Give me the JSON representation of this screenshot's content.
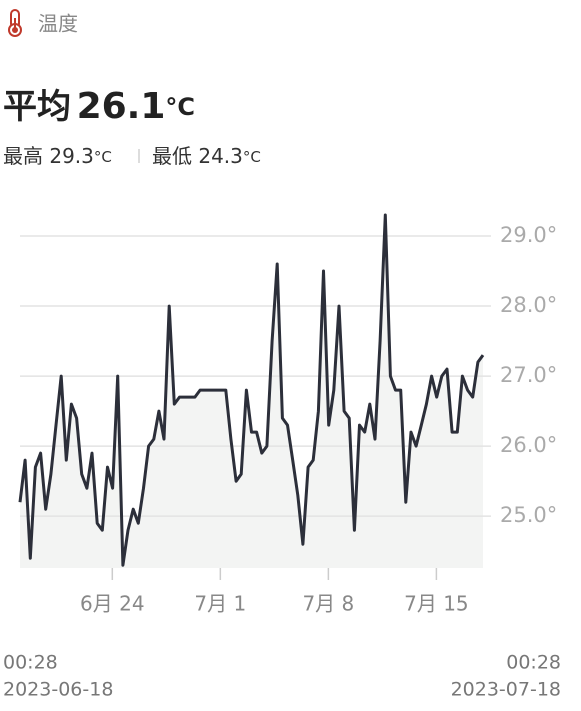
{
  "header": {
    "title": "温度"
  },
  "summary": {
    "avg_label": "平均",
    "avg": 26.1,
    "unit": "°C",
    "max_label": "最高",
    "max": 29.3,
    "min_label": "最低",
    "min": 24.3
  },
  "chart_data": {
    "type": "line",
    "color": "#2c2f3a",
    "fill": "#f3f4f3",
    "grid": true,
    "x": [
      "2023-06-18T00:28",
      "2023-06-18T08:28",
      "2023-06-18T16:28",
      "2023-06-19T00:28",
      "2023-06-19T08:28",
      "2023-06-19T16:28",
      "2023-06-20T00:28",
      "2023-06-20T08:28",
      "2023-06-20T16:28",
      "2023-06-21T00:28",
      "2023-06-21T08:28",
      "2023-06-21T16:28",
      "2023-06-22T00:28",
      "2023-06-22T08:28",
      "2023-06-22T16:28",
      "2023-06-23T00:28",
      "2023-06-23T08:28",
      "2023-06-23T16:28",
      "2023-06-24T00:28",
      "2023-06-24T08:28",
      "2023-06-24T16:28",
      "2023-06-25T00:28",
      "2023-06-25T08:28",
      "2023-06-25T16:28",
      "2023-06-26T00:28",
      "2023-06-26T08:28",
      "2023-06-26T16:28",
      "2023-06-27T00:28",
      "2023-06-27T08:28",
      "2023-06-27T16:28",
      "2023-06-28T00:28",
      "2023-06-28T08:28",
      "2023-06-28T16:28",
      "2023-06-29T00:28",
      "2023-06-29T08:28",
      "2023-06-29T16:28",
      "2023-06-30T00:28",
      "2023-06-30T08:28",
      "2023-06-30T16:28",
      "2023-07-01T00:28",
      "2023-07-01T08:28",
      "2023-07-01T16:28",
      "2023-07-02T00:28",
      "2023-07-02T08:28",
      "2023-07-02T16:28",
      "2023-07-03T00:28",
      "2023-07-03T08:28",
      "2023-07-03T16:28",
      "2023-07-04T00:28",
      "2023-07-04T08:28",
      "2023-07-04T16:28",
      "2023-07-05T00:28",
      "2023-07-05T08:28",
      "2023-07-05T16:28",
      "2023-07-06T00:28",
      "2023-07-06T08:28",
      "2023-07-06T16:28",
      "2023-07-07T00:28",
      "2023-07-07T08:28",
      "2023-07-07T16:28",
      "2023-07-08T00:28",
      "2023-07-08T08:28",
      "2023-07-08T16:28",
      "2023-07-09T00:28",
      "2023-07-09T08:28",
      "2023-07-09T16:28",
      "2023-07-10T00:28",
      "2023-07-10T08:28",
      "2023-07-10T16:28",
      "2023-07-11T00:28",
      "2023-07-11T08:28",
      "2023-07-11T16:28",
      "2023-07-12T00:28",
      "2023-07-12T08:28",
      "2023-07-12T16:28",
      "2023-07-13T00:28",
      "2023-07-13T08:28",
      "2023-07-13T16:28",
      "2023-07-14T00:28",
      "2023-07-14T08:28",
      "2023-07-14T16:28",
      "2023-07-15T00:28",
      "2023-07-15T08:28",
      "2023-07-15T16:28",
      "2023-07-16T00:28",
      "2023-07-16T08:28",
      "2023-07-16T16:28",
      "2023-07-17T00:28",
      "2023-07-17T08:28",
      "2023-07-17T16:28",
      "2023-07-18T00:28"
    ],
    "values": [
      25.2,
      25.8,
      24.4,
      25.7,
      25.9,
      25.1,
      25.6,
      26.3,
      27.0,
      25.8,
      26.6,
      26.4,
      25.6,
      25.4,
      25.9,
      24.9,
      24.8,
      25.7,
      25.4,
      27.0,
      24.3,
      24.8,
      25.1,
      24.9,
      25.4,
      26.0,
      26.1,
      26.5,
      26.1,
      28.0,
      26.6,
      26.7,
      26.7,
      26.7,
      26.7,
      26.8,
      26.8,
      26.8,
      26.8,
      26.8,
      26.8,
      26.1,
      25.5,
      25.6,
      26.8,
      26.2,
      26.2,
      25.9,
      26.0,
      27.5,
      28.6,
      26.4,
      26.3,
      25.8,
      25.3,
      24.6,
      25.7,
      25.8,
      26.5,
      28.5,
      26.3,
      26.8,
      28.0,
      26.5,
      26.4,
      24.8,
      26.3,
      26.2,
      26.6,
      26.1,
      27.5,
      29.3,
      27.0,
      26.8,
      26.8,
      25.2,
      26.2,
      26.0,
      26.3,
      26.6,
      27.0,
      26.7,
      27.0,
      27.1,
      26.2,
      26.2,
      27.0,
      26.8,
      26.7,
      27.2,
      27.3
    ],
    "xlim": [
      "2023-06-18T00:28",
      "2023-07-18T00:28"
    ],
    "xticks": [
      {
        "value": "2023-06-24T00:00",
        "label": "6月 24"
      },
      {
        "value": "2023-07-01T00:00",
        "label": "7月 1"
      },
      {
        "value": "2023-07-08T00:00",
        "label": "7月 8"
      },
      {
        "value": "2023-07-15T00:00",
        "label": "7月 15"
      }
    ],
    "ylim": [
      24.26,
      29.5
    ],
    "yticks": [
      {
        "value": 25,
        "label": "25.0°"
      },
      {
        "value": 26,
        "label": "26.0°"
      },
      {
        "value": 27,
        "label": "27.0°"
      },
      {
        "value": 28,
        "label": "28.0°"
      },
      {
        "value": 29,
        "label": "29.0°"
      }
    ],
    "start": {
      "time": "00:28",
      "date": "2023-06-18"
    },
    "end": {
      "time": "00:28",
      "date": "2023-07-18"
    }
  }
}
